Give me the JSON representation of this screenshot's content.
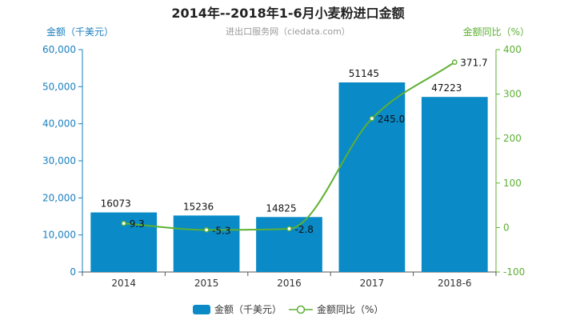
{
  "chart_data": {
    "type": "bar",
    "title": "2014年--2018年1-6月小麦粉进口金额",
    "subtitle": "进出口服务网（ciedata.com）",
    "categories": [
      "2014",
      "2015",
      "2016",
      "2017",
      "2018-6"
    ],
    "series": [
      {
        "name": "金额（千美元）",
        "type": "bar",
        "axis": "left",
        "color": "#0a8ac6",
        "values": [
          16073,
          15236,
          14825,
          51145,
          47223
        ],
        "labels": [
          "16073",
          "15236",
          "14825",
          "51145",
          "47223"
        ]
      },
      {
        "name": "金额同比（%）",
        "type": "line",
        "axis": "right",
        "color": "#5db033",
        "values": [
          9.3,
          -5.3,
          -2.8,
          245.0,
          371.7
        ],
        "labels": [
          "9.3",
          "-5.3",
          "-2.8",
          "245.0",
          "371.7"
        ]
      }
    ],
    "ylabel": "金额（千美元）",
    "ylabel_right": "金额同比（%）",
    "ylim": [
      0,
      60000
    ],
    "ylim_right": [
      -100,
      400
    ],
    "yticks": [
      "0",
      "10,000",
      "20,000",
      "30,000",
      "40,000",
      "50,000",
      "60,000"
    ],
    "yticks_right": [
      "-100",
      "0",
      "100",
      "200",
      "300",
      "400"
    ],
    "legend_position": "bottom",
    "grid": false
  }
}
